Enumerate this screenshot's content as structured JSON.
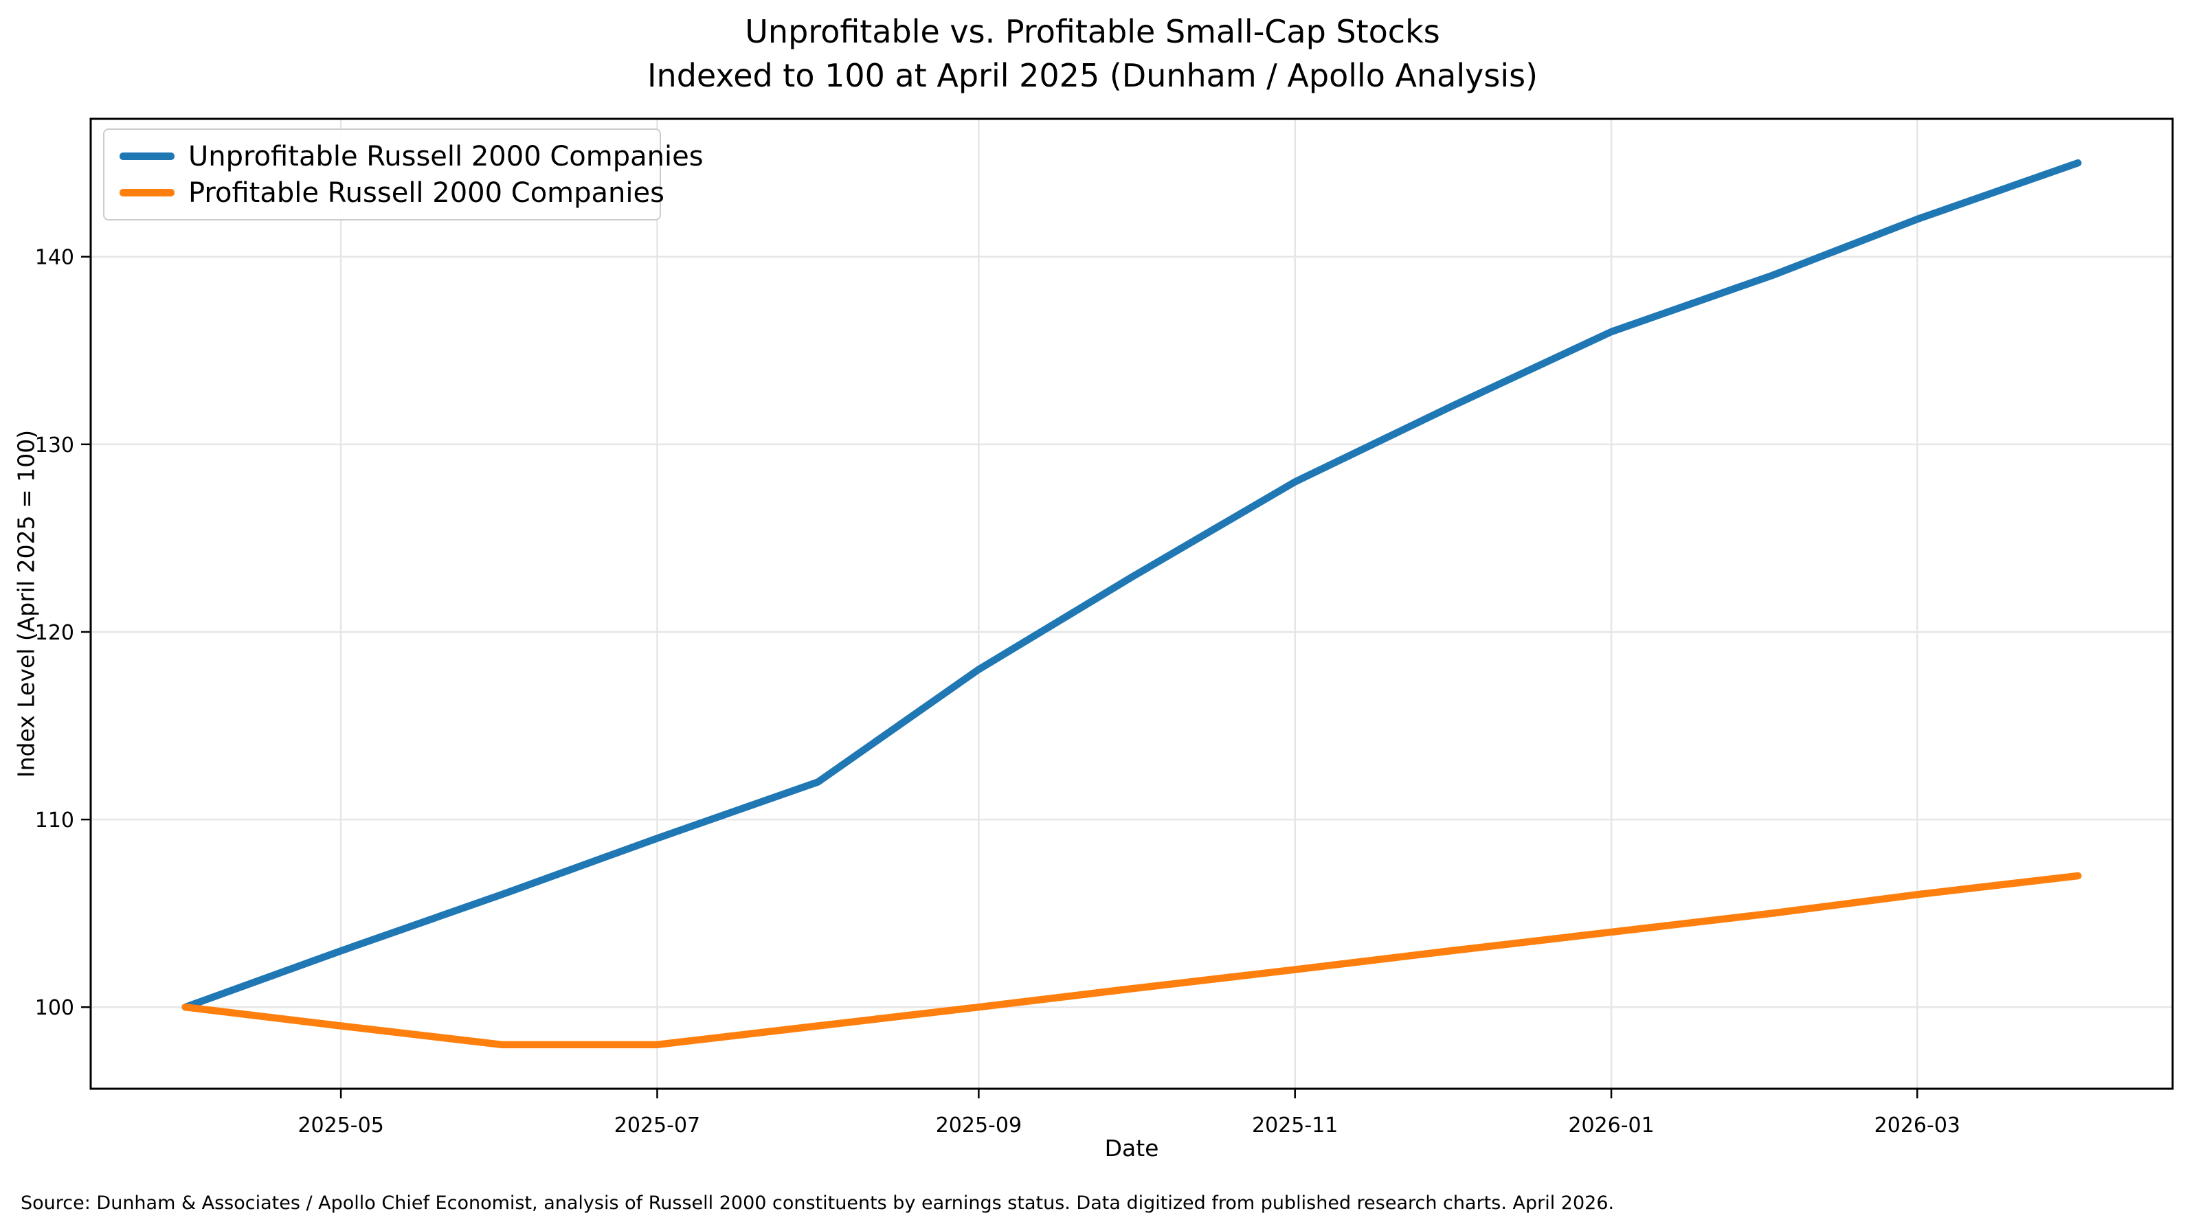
{
  "title": {
    "line1": "Unprofitable vs. Profitable Small-Cap Stocks",
    "line2": "Indexed to 100 at April 2025 (Dunham / Apollo Analysis)"
  },
  "source_note": "Source: Dunham & Associates / Apollo Chief Economist, analysis of Russell 2000 constituents by earnings status. Data digitized from published research charts. April 2026.",
  "chart_data": {
    "type": "line",
    "title": "Unprofitable vs. Profitable Small-Cap Stocks\nIndexed to 100 at April 2025 (Dunham / Apollo Analysis)",
    "xlabel": "Date",
    "ylabel": "Index Level (April 2025 = 100)",
    "x": [
      "2025-04-01",
      "2025-05-01",
      "2025-06-01",
      "2025-07-01",
      "2025-08-01",
      "2025-09-01",
      "2025-10-01",
      "2025-11-01",
      "2025-12-01",
      "2026-01-01",
      "2026-02-01",
      "2026-03-01",
      "2026-04-01"
    ],
    "x_days": [
      0,
      30,
      61,
      91,
      122,
      153,
      183,
      214,
      244,
      275,
      306,
      334,
      365
    ],
    "series": [
      {
        "name": "Unprofitable Russell 2000 Companies",
        "color": "#1f77b4",
        "values": [
          100,
          103,
          106,
          109,
          112,
          118,
          123,
          128,
          132,
          136,
          139,
          142,
          145
        ]
      },
      {
        "name": "Profitable Russell 2000 Companies",
        "color": "#ff7f0e",
        "values": [
          100,
          99,
          98,
          98,
          99,
          100,
          101,
          102,
          103,
          104,
          105,
          106,
          107
        ]
      }
    ],
    "x_tick_labels": [
      "2025-05",
      "2025-07",
      "2025-09",
      "2025-11",
      "2026-01",
      "2026-03"
    ],
    "x_tick_days": [
      30,
      91,
      153,
      214,
      275,
      334
    ],
    "y_ticks": [
      100,
      110,
      120,
      130,
      140
    ],
    "ylim": [
      95.65,
      147.35
    ],
    "xlim_days": [
      -18.25,
      383.25
    ],
    "grid": true,
    "grid_color": "#e6e6e6",
    "spine_color": "#000000",
    "legend_position": "upper left"
  }
}
